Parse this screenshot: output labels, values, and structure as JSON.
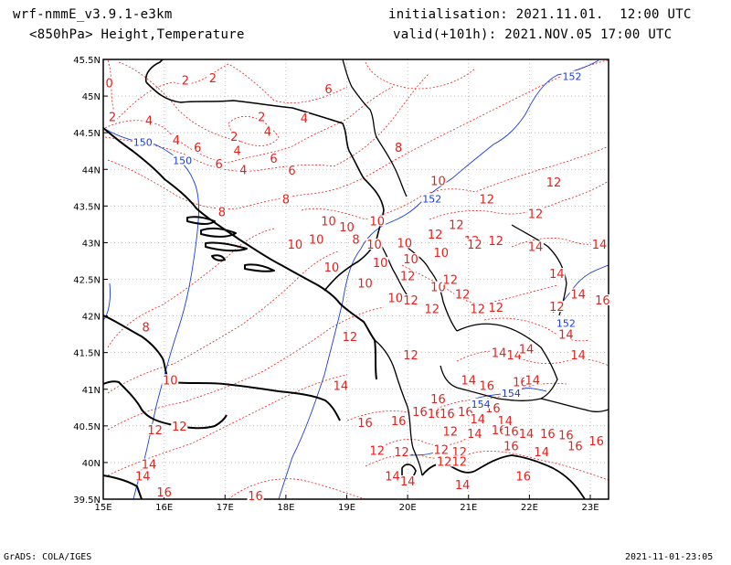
{
  "header": {
    "model": "wrf-nmmE_v3.9.1-e3km",
    "field": "<850hPa> Height,Temperature",
    "init": "initialisation: 2021.11.01.  12:00 UTC",
    "valid": "valid(+101h): 2021.NOV.05 17:00 UTC"
  },
  "footer": {
    "credit": "GrADS: COLA/IGES",
    "timestamp": "2021-11-01-23:05"
  },
  "colors": {
    "temperature": "#e8201c",
    "height": "#1c3cd8",
    "coast": "#000000",
    "grid": "#9a9a9a"
  },
  "map": {
    "lon_ticks": [
      "15E",
      "16E",
      "17E",
      "18E",
      "19E",
      "20E",
      "21E",
      "22E",
      "23E"
    ],
    "lat_ticks": [
      "45.5N",
      "45N",
      "44.5N",
      "44N",
      "43.5N",
      "43N",
      "42.5N",
      "42N",
      "41.5N",
      "41N",
      "40.5N",
      "40N",
      "39.5N"
    ],
    "lon_range": [
      15,
      23.3
    ],
    "lat_range": [
      39.5,
      45.5
    ],
    "grid": true,
    "temperature_labels": [
      {
        "text": "2",
        "lon": 16.8,
        "lat": 45.25
      },
      {
        "text": "2",
        "lon": 16.35,
        "lat": 45.22
      },
      {
        "text": "0",
        "lon": 15.1,
        "lat": 45.18
      },
      {
        "text": "2",
        "lon": 15.15,
        "lat": 44.72
      },
      {
        "text": "4",
        "lon": 15.75,
        "lat": 44.67
      },
      {
        "text": "2",
        "lon": 17.6,
        "lat": 44.72
      },
      {
        "text": "4",
        "lon": 18.3,
        "lat": 44.7
      },
      {
        "text": "4",
        "lon": 17.7,
        "lat": 44.52
      },
      {
        "text": "2",
        "lon": 17.15,
        "lat": 44.45
      },
      {
        "text": "4",
        "lon": 16.2,
        "lat": 44.4
      },
      {
        "text": "6",
        "lon": 16.55,
        "lat": 44.3
      },
      {
        "text": "4",
        "lon": 17.2,
        "lat": 44.26
      },
      {
        "text": "6",
        "lon": 16.9,
        "lat": 44.08
      },
      {
        "text": "4",
        "lon": 17.3,
        "lat": 44.0
      },
      {
        "text": "6",
        "lon": 17.8,
        "lat": 44.15
      },
      {
        "text": "6",
        "lon": 18.1,
        "lat": 43.99
      },
      {
        "text": "6",
        "lon": 18.7,
        "lat": 45.1
      },
      {
        "text": "8",
        "lon": 19.85,
        "lat": 44.3
      },
      {
        "text": "8",
        "lon": 18.0,
        "lat": 43.6
      },
      {
        "text": "8",
        "lon": 16.95,
        "lat": 43.42
      },
      {
        "text": "10",
        "lon": 20.5,
        "lat": 43.85
      },
      {
        "text": "12",
        "lon": 21.3,
        "lat": 43.6
      },
      {
        "text": "12",
        "lon": 22.4,
        "lat": 43.83
      },
      {
        "text": "12",
        "lon": 22.1,
        "lat": 43.4
      },
      {
        "text": "12",
        "lon": 20.8,
        "lat": 43.25
      },
      {
        "text": "12",
        "lon": 21.05,
        "lat": 43.03
      },
      {
        "text": "10",
        "lon": 18.7,
        "lat": 43.3
      },
      {
        "text": "10",
        "lon": 19.0,
        "lat": 43.22
      },
      {
        "text": "10",
        "lon": 19.5,
        "lat": 43.3
      },
      {
        "text": "10",
        "lon": 18.5,
        "lat": 43.05
      },
      {
        "text": "10",
        "lon": 18.15,
        "lat": 42.98
      },
      {
        "text": "8",
        "lon": 19.15,
        "lat": 43.05
      },
      {
        "text": "10",
        "lon": 19.45,
        "lat": 42.98
      },
      {
        "text": "10",
        "lon": 19.95,
        "lat": 43.0
      },
      {
        "text": "10",
        "lon": 20.05,
        "lat": 42.78
      },
      {
        "text": "10",
        "lon": 20.55,
        "lat": 42.87
      },
      {
        "text": "10",
        "lon": 19.55,
        "lat": 42.73
      },
      {
        "text": "10",
        "lon": 18.75,
        "lat": 42.67
      },
      {
        "text": "10",
        "lon": 19.3,
        "lat": 42.45
      },
      {
        "text": "10",
        "lon": 19.8,
        "lat": 42.25
      },
      {
        "text": "10",
        "lon": 20.5,
        "lat": 42.4
      },
      {
        "text": "12",
        "lon": 20.0,
        "lat": 42.55
      },
      {
        "text": "12",
        "lon": 20.7,
        "lat": 42.5
      },
      {
        "text": "12",
        "lon": 20.9,
        "lat": 42.3
      },
      {
        "text": "12",
        "lon": 20.05,
        "lat": 42.22
      },
      {
        "text": "12",
        "lon": 20.4,
        "lat": 42.1
      },
      {
        "text": "12",
        "lon": 21.15,
        "lat": 42.1
      },
      {
        "text": "12",
        "lon": 21.45,
        "lat": 42.12
      },
      {
        "text": "12",
        "lon": 21.1,
        "lat": 42.98
      },
      {
        "text": "12",
        "lon": 20.45,
        "lat": 43.12
      },
      {
        "text": "12",
        "lon": 21.45,
        "lat": 43.03
      },
      {
        "text": "14",
        "lon": 22.1,
        "lat": 42.95
      },
      {
        "text": "14",
        "lon": 23.15,
        "lat": 42.98
      },
      {
        "text": "14",
        "lon": 22.45,
        "lat": 42.58
      },
      {
        "text": "14",
        "lon": 22.8,
        "lat": 42.3
      },
      {
        "text": "12",
        "lon": 22.45,
        "lat": 42.13
      },
      {
        "text": "16",
        "lon": 23.2,
        "lat": 42.22
      },
      {
        "text": "14",
        "lon": 22.6,
        "lat": 41.75
      },
      {
        "text": "14",
        "lon": 22.8,
        "lat": 41.47
      },
      {
        "text": "14",
        "lon": 21.5,
        "lat": 41.5
      },
      {
        "text": "14",
        "lon": 21.75,
        "lat": 41.47
      },
      {
        "text": "14",
        "lon": 21.95,
        "lat": 41.55
      },
      {
        "text": "12",
        "lon": 19.05,
        "lat": 41.72
      },
      {
        "text": "12",
        "lon": 20.05,
        "lat": 41.47
      },
      {
        "text": "14",
        "lon": 18.9,
        "lat": 41.05
      },
      {
        "text": "10",
        "lon": 16.1,
        "lat": 41.13
      },
      {
        "text": "8",
        "lon": 15.7,
        "lat": 41.85
      },
      {
        "text": "14",
        "lon": 21.0,
        "lat": 41.13
      },
      {
        "text": "16",
        "lon": 21.3,
        "lat": 41.05
      },
      {
        "text": "16",
        "lon": 21.85,
        "lat": 41.1
      },
      {
        "text": "14",
        "lon": 22.05,
        "lat": 41.13
      },
      {
        "text": "16",
        "lon": 20.5,
        "lat": 40.87
      },
      {
        "text": "16",
        "lon": 20.2,
        "lat": 40.7
      },
      {
        "text": "16",
        "lon": 20.45,
        "lat": 40.67
      },
      {
        "text": "16",
        "lon": 20.65,
        "lat": 40.67
      },
      {
        "text": "16",
        "lon": 20.95,
        "lat": 40.7
      },
      {
        "text": "16",
        "lon": 21.4,
        "lat": 40.75
      },
      {
        "text": "14",
        "lon": 21.15,
        "lat": 40.6
      },
      {
        "text": "16",
        "lon": 19.3,
        "lat": 40.55
      },
      {
        "text": "16",
        "lon": 19.85,
        "lat": 40.57
      },
      {
        "text": "14",
        "lon": 21.6,
        "lat": 40.57
      },
      {
        "text": "12",
        "lon": 20.7,
        "lat": 40.43
      },
      {
        "text": "14",
        "lon": 21.1,
        "lat": 40.4
      },
      {
        "text": "16",
        "lon": 21.5,
        "lat": 40.45
      },
      {
        "text": "16",
        "lon": 21.7,
        "lat": 40.43
      },
      {
        "text": "14",
        "lon": 21.95,
        "lat": 40.4
      },
      {
        "text": "16",
        "lon": 22.3,
        "lat": 40.4
      },
      {
        "text": "16",
        "lon": 22.6,
        "lat": 40.38
      },
      {
        "text": "16",
        "lon": 23.1,
        "lat": 40.3
      },
      {
        "text": "16",
        "lon": 21.7,
        "lat": 40.23
      },
      {
        "text": "16",
        "lon": 22.75,
        "lat": 40.23
      },
      {
        "text": "14",
        "lon": 22.2,
        "lat": 40.15
      },
      {
        "text": "12",
        "lon": 19.5,
        "lat": 40.17
      },
      {
        "text": "12",
        "lon": 19.9,
        "lat": 40.15
      },
      {
        "text": "12",
        "lon": 20.55,
        "lat": 40.18
      },
      {
        "text": "12",
        "lon": 20.85,
        "lat": 40.15
      },
      {
        "text": "12",
        "lon": 20.6,
        "lat": 40.02
      },
      {
        "text": "12",
        "lon": 20.85,
        "lat": 40.02
      },
      {
        "text": "14",
        "lon": 19.75,
        "lat": 39.82
      },
      {
        "text": "14",
        "lon": 20.0,
        "lat": 39.75
      },
      {
        "text": "14",
        "lon": 20.9,
        "lat": 39.7
      },
      {
        "text": "16",
        "lon": 21.9,
        "lat": 39.82
      },
      {
        "text": "16",
        "lon": 17.5,
        "lat": 39.55
      },
      {
        "text": "14",
        "lon": 15.75,
        "lat": 39.98
      },
      {
        "text": "14",
        "lon": 15.65,
        "lat": 39.82
      },
      {
        "text": "16",
        "lon": 16.0,
        "lat": 39.6
      },
      {
        "text": "12",
        "lon": 15.85,
        "lat": 40.45
      },
      {
        "text": "12",
        "lon": 16.25,
        "lat": 40.5
      }
    ],
    "height_labels": [
      {
        "text": "150",
        "lon": 15.65,
        "lat": 44.37
      },
      {
        "text": "150",
        "lon": 16.3,
        "lat": 44.12
      },
      {
        "text": "152",
        "lon": 20.4,
        "lat": 43.6
      },
      {
        "text": "152",
        "lon": 22.7,
        "lat": 45.27
      },
      {
        "text": "152",
        "lon": 22.6,
        "lat": 41.9
      },
      {
        "text": "154",
        "lon": 21.7,
        "lat": 40.95
      },
      {
        "text": "154",
        "lon": 21.2,
        "lat": 40.8
      }
    ]
  }
}
